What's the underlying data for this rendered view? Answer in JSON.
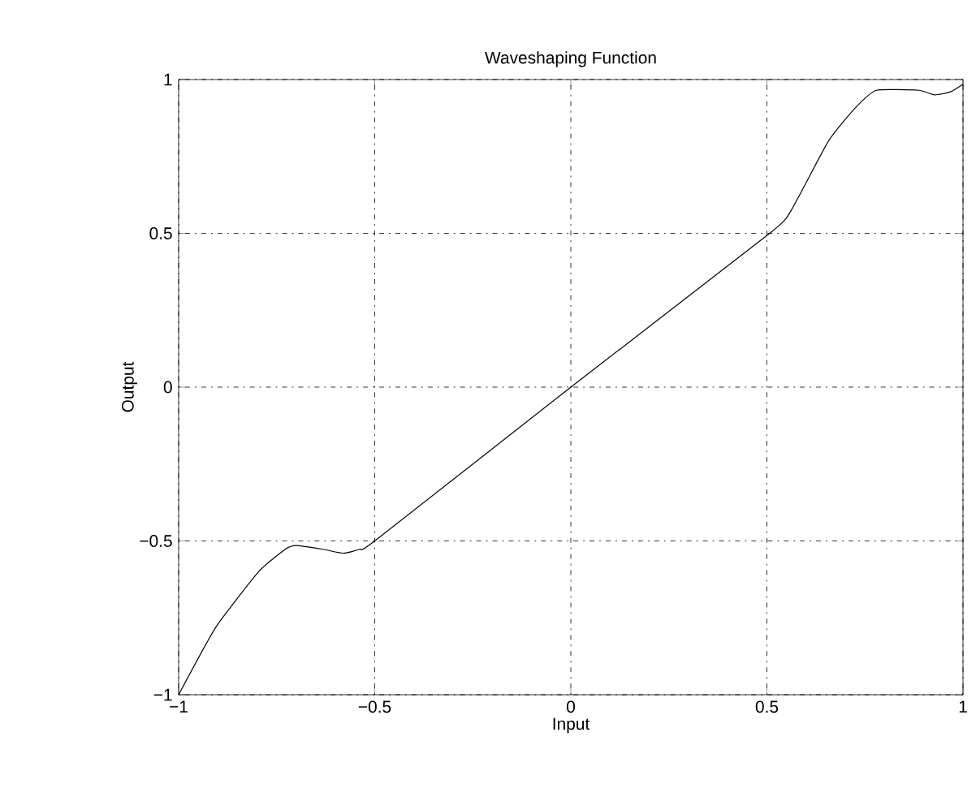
{
  "chart_data": {
    "type": "line",
    "title": "Waveshaping Function",
    "xlabel": "Input",
    "ylabel": "Output",
    "x": [
      -1,
      -0.905,
      -0.796,
      -0.728,
      -0.7,
      -0.633,
      -0.579,
      -0.539,
      -0.5,
      0,
      0.507,
      0.561,
      0.657,
      0.724,
      0.779,
      0.887,
      0.928,
      0.968,
      1
    ],
    "series": [
      {
        "color": "#000000",
        "values": [
          -1,
          -0.78,
          -0.6,
          -0.527,
          -0.515,
          -0.527,
          -0.54,
          -0.527,
          -0.5,
          0,
          0.5,
          0.573,
          0.8,
          0.906,
          0.965,
          0.965,
          0.95,
          0.96,
          0.985
        ]
      }
    ],
    "xlim": [
      -1,
      1
    ],
    "ylim": [
      -1,
      1
    ],
    "xticks": [
      {
        "value": -1,
        "label": "−1"
      },
      {
        "value": -0.5,
        "label": "−0.5"
      },
      0,
      0.5,
      1
    ],
    "yticks": [
      {
        "value": -1,
        "label": "−1"
      },
      {
        "value": -0.5,
        "label": "−0.5"
      },
      0,
      0.5,
      1
    ],
    "grid": true,
    "line_style": "solid",
    "marker": "none"
  }
}
